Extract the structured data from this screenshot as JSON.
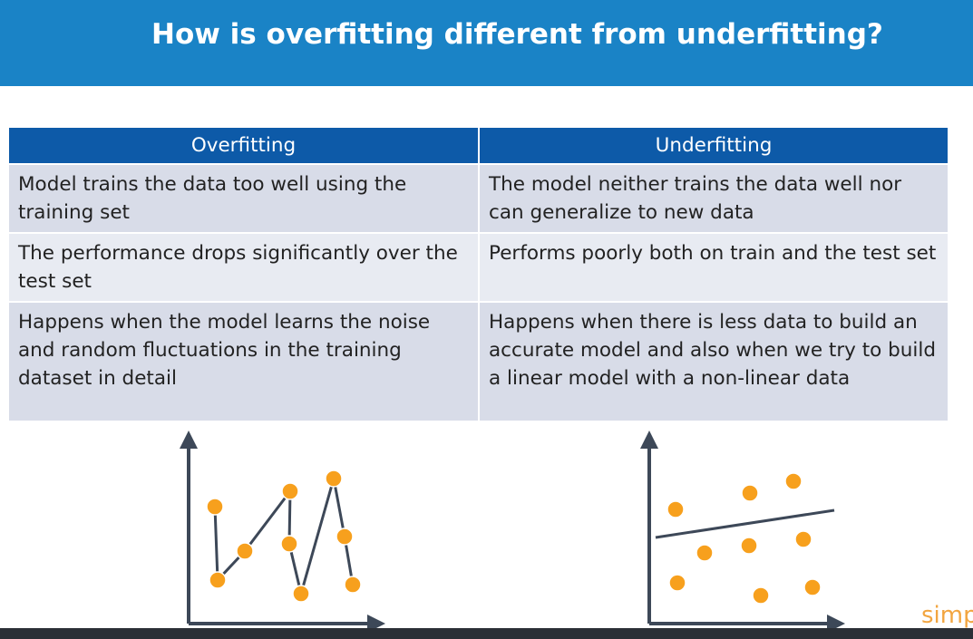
{
  "header": {
    "title": "How is overfitting different from underfitting?"
  },
  "table": {
    "columns": [
      "Overfitting",
      "Underfitting"
    ],
    "rows": [
      [
        "Model trains the data too well using the training set",
        "The model neither trains the data well nor can generalize to new data"
      ],
      [
        "The performance drops significantly over the test set",
        "Performs poorly both on train and the test set"
      ],
      [
        "Happens when the model learns the noise and random fluctuations in the training dataset in detail",
        "Happens when there is less data to build an accurate model and also when we try to build a linear model with a non-linear data"
      ]
    ]
  },
  "logo": "simp"
}
